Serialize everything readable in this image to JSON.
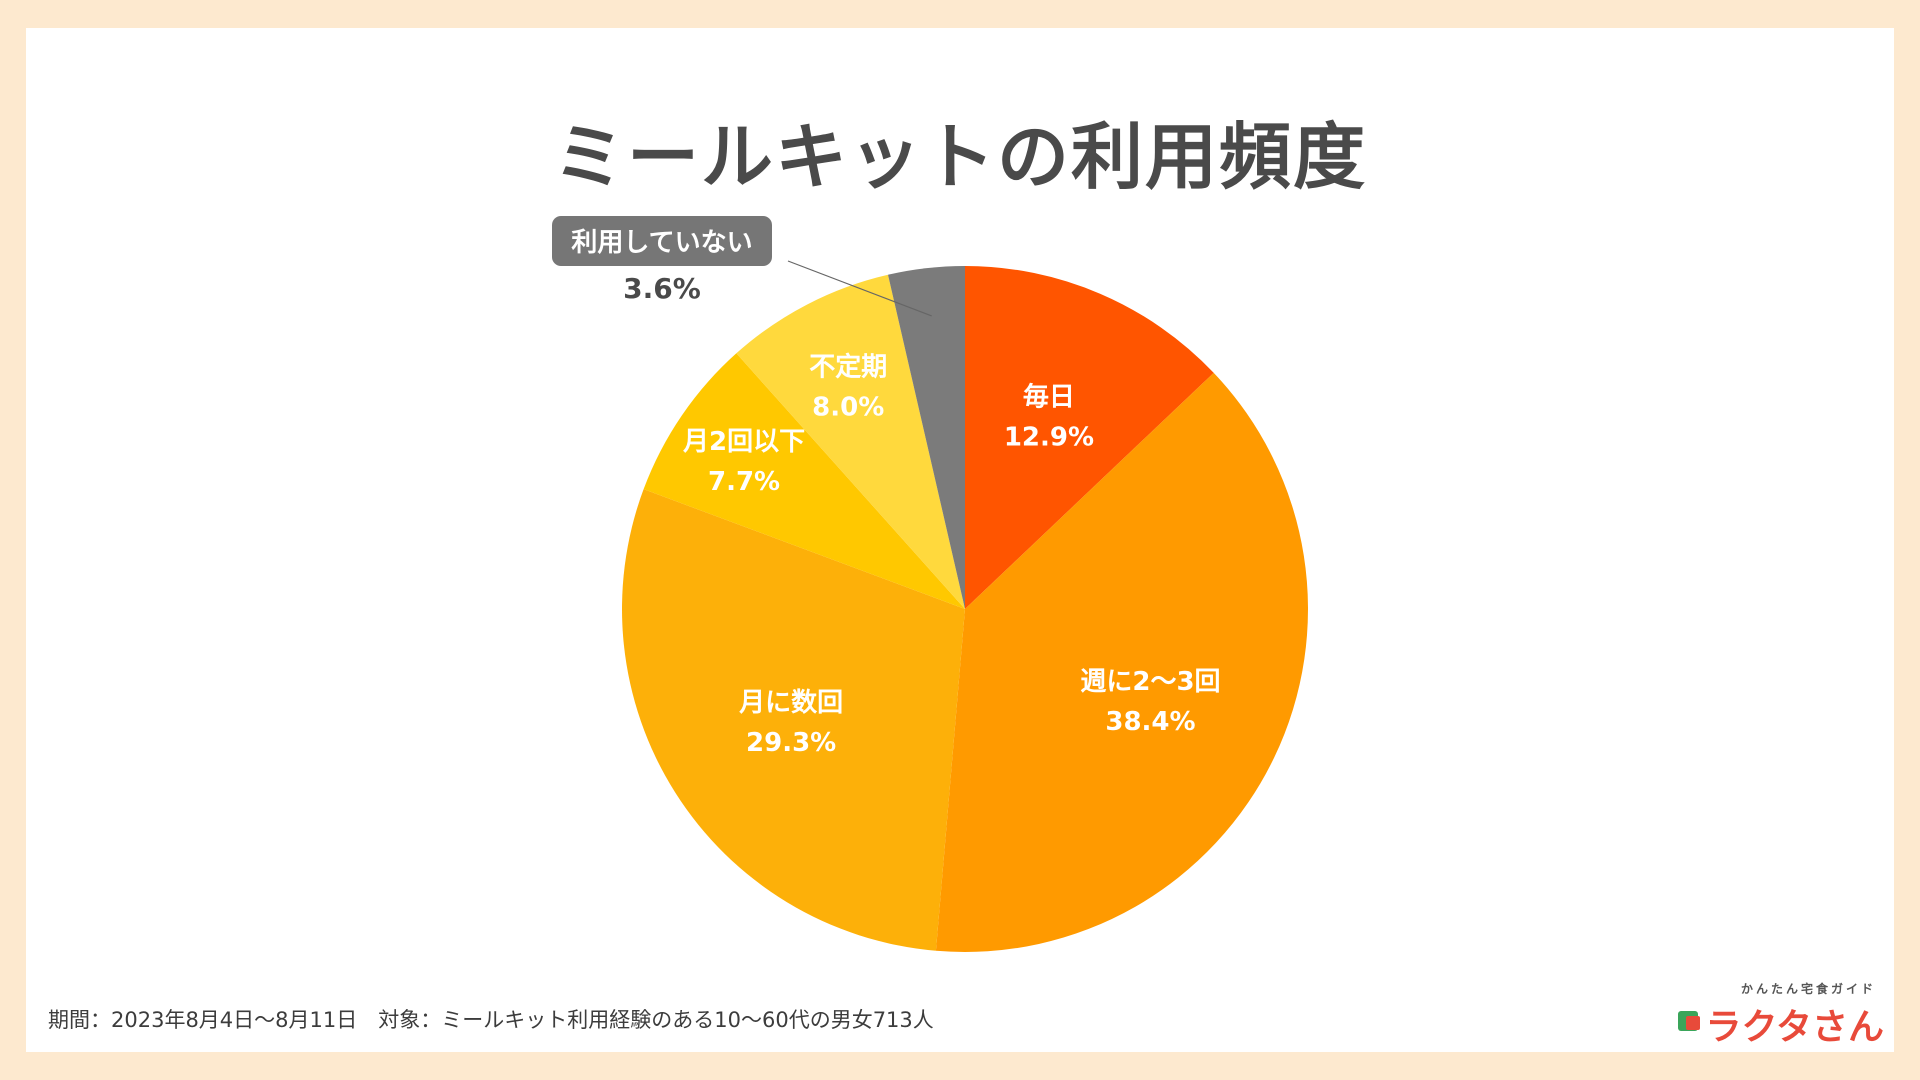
{
  "title": "ミールキットの利用頻度",
  "footer": "期間：2023年8月4日〜8月11日　対象：ミールキット利用経験のある10〜60代の男女713人",
  "brand": {
    "subtitle": "かんたん宅食ガイド",
    "name": "ラクタさん"
  },
  "colors": {
    "background": "#fde9cf",
    "card": "#ffffff",
    "title": "#4a4a4a"
  },
  "chart_data": {
    "type": "pie",
    "title": "ミールキットの利用頻度",
    "unit": "%",
    "start_angle_deg": 0,
    "direction": "clockwise",
    "slices": [
      {
        "label": "毎日",
        "value": 12.9,
        "display": "12.9%",
        "color": "#ff5500",
        "label_color": "#ffffff"
      },
      {
        "label": "週に2〜3回",
        "value": 38.4,
        "display": "38.4%",
        "color": "#ff9a00",
        "label_color": "#ffffff"
      },
      {
        "label": "月に数回",
        "value": 29.3,
        "display": "29.3%",
        "color": "#fdb009",
        "label_color": "#ffffff"
      },
      {
        "label": "月2回以下",
        "value": 7.7,
        "display": "7.7%",
        "color": "#ffc800",
        "label_color": "#ffffff"
      },
      {
        "label": "不定期",
        "value": 8.0,
        "display": "8.0%",
        "color": "#ffd93d",
        "label_color": "#ffffff"
      },
      {
        "label": "利用していない",
        "value": 3.6,
        "display": "3.6%",
        "color": "#7b7b7b",
        "label_color": "#ffffff",
        "callout": true,
        "callout_badge_color": "#767676",
        "callout_value_color": "#4a4a4a"
      }
    ]
  }
}
